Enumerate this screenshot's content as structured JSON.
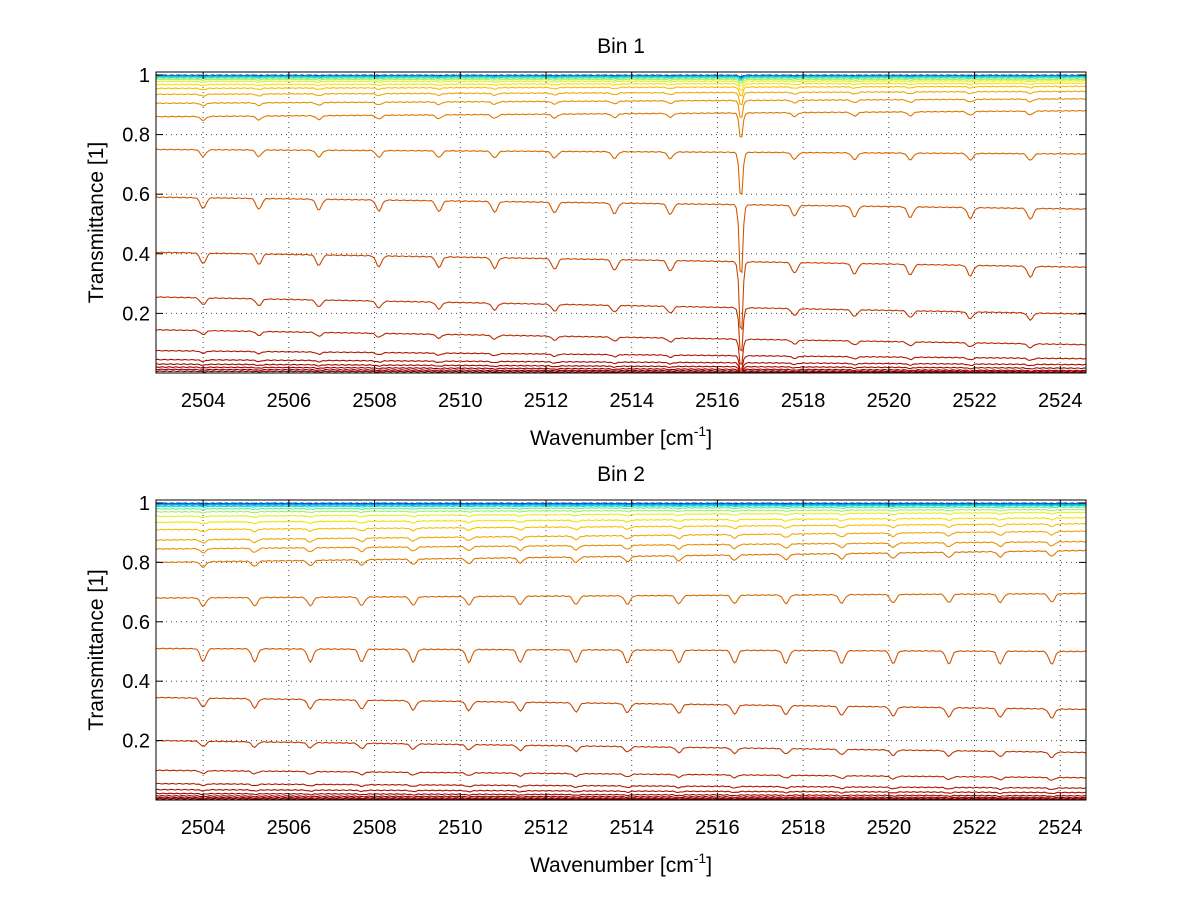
{
  "chart_data": [
    {
      "type": "line",
      "title": "Bin 1",
      "xlabel": "Wavenumber [cm",
      "xlabel_sup": "-1",
      "xlabel_tail": "]",
      "ylabel": "Transmittance [1]",
      "xlim": [
        2502.9,
        2524.6
      ],
      "ylim": [
        0,
        1.01
      ],
      "x_ticks": [
        2504,
        2506,
        2508,
        2510,
        2512,
        2514,
        2516,
        2518,
        2520,
        2522,
        2524
      ],
      "x_tick_labels": [
        "2504",
        "2506",
        "2508",
        "2510",
        "2512",
        "2514",
        "2516",
        "2518",
        "2520",
        "2522",
        "2524"
      ],
      "y_ticks": [
        0.2,
        0.4,
        0.6,
        0.8,
        1
      ],
      "y_tick_labels": [
        "0.2",
        "0.4",
        "0.6",
        "0.8",
        "1"
      ],
      "grid": true,
      "absorption_lines": [
        2504.0,
        2505.3,
        2506.7,
        2508.1,
        2509.5,
        2510.8,
        2512.2,
        2513.6,
        2514.9,
        2516.55,
        2517.8,
        2519.2,
        2520.5,
        2521.9,
        2523.3
      ],
      "strong_line": 2516.55,
      "series": [
        {
          "start": 0.999,
          "end": 0.999,
          "color": "#00208f"
        },
        {
          "start": 0.998,
          "end": 0.998,
          "color": "#0050d0"
        },
        {
          "start": 0.997,
          "end": 0.997,
          "color": "#0088f0"
        },
        {
          "start": 0.995,
          "end": 0.995,
          "color": "#00b8f0"
        },
        {
          "start": 0.993,
          "end": 0.993,
          "color": "#20d8d0"
        },
        {
          "start": 0.99,
          "end": 0.99,
          "color": "#60e8a0"
        },
        {
          "start": 0.985,
          "end": 0.985,
          "color": "#a0f060"
        },
        {
          "start": 0.978,
          "end": 0.98,
          "color": "#e0f020"
        },
        {
          "start": 0.968,
          "end": 0.972,
          "color": "#f8e000"
        },
        {
          "start": 0.955,
          "end": 0.962,
          "color": "#f8c000"
        },
        {
          "start": 0.935,
          "end": 0.945,
          "color": "#f0a800"
        },
        {
          "start": 0.905,
          "end": 0.92,
          "color": "#e89000"
        },
        {
          "start": 0.86,
          "end": 0.88,
          "color": "#e07800"
        },
        {
          "start": 0.75,
          "end": 0.735,
          "color": "#d86800"
        },
        {
          "start": 0.59,
          "end": 0.55,
          "color": "#d05800"
        },
        {
          "start": 0.405,
          "end": 0.355,
          "color": "#c84800"
        },
        {
          "start": 0.255,
          "end": 0.198,
          "color": "#c03800"
        },
        {
          "start": 0.145,
          "end": 0.095,
          "color": "#b82800"
        },
        {
          "start": 0.075,
          "end": 0.048,
          "color": "#b01800"
        },
        {
          "start": 0.045,
          "end": 0.028,
          "color": "#a81000"
        },
        {
          "start": 0.03,
          "end": 0.016,
          "color": "#a00800"
        },
        {
          "start": 0.02,
          "end": 0.008,
          "color": "#980000"
        },
        {
          "start": 0.012,
          "end": 0.004,
          "color": "#900000"
        },
        {
          "start": 0.006,
          "end": 0.001,
          "color": "#880000"
        }
      ]
    },
    {
      "type": "line",
      "title": "Bin 2",
      "xlabel": "Wavenumber [cm",
      "xlabel_sup": "-1",
      "xlabel_tail": "]",
      "ylabel": "Transmittance [1]",
      "xlim": [
        2502.9,
        2524.6
      ],
      "ylim": [
        0,
        1.01
      ],
      "x_ticks": [
        2504,
        2506,
        2508,
        2510,
        2512,
        2514,
        2516,
        2518,
        2520,
        2522,
        2524
      ],
      "x_tick_labels": [
        "2504",
        "2506",
        "2508",
        "2510",
        "2512",
        "2514",
        "2516",
        "2518",
        "2520",
        "2522",
        "2524"
      ],
      "y_ticks": [
        0.2,
        0.4,
        0.6,
        0.8,
        1
      ],
      "y_tick_labels": [
        "0.2",
        "0.4",
        "0.6",
        "0.8",
        "1"
      ],
      "grid": true,
      "absorption_lines": [
        2504.0,
        2505.2,
        2506.5,
        2507.7,
        2508.9,
        2510.2,
        2511.4,
        2512.7,
        2513.9,
        2515.1,
        2516.4,
        2517.6,
        2518.9,
        2520.1,
        2521.4,
        2522.6,
        2523.8
      ],
      "strong_line": null,
      "series": [
        {
          "start": 0.999,
          "end": 0.999,
          "color": "#00208f"
        },
        {
          "start": 0.998,
          "end": 0.998,
          "color": "#0050d0"
        },
        {
          "start": 0.996,
          "end": 0.996,
          "color": "#0088f0"
        },
        {
          "start": 0.993,
          "end": 0.994,
          "color": "#00b8f0"
        },
        {
          "start": 0.988,
          "end": 0.991,
          "color": "#20d8d0"
        },
        {
          "start": 0.98,
          "end": 0.986,
          "color": "#60e8a0"
        },
        {
          "start": 0.97,
          "end": 0.978,
          "color": "#a0f060"
        },
        {
          "start": 0.955,
          "end": 0.968,
          "color": "#e0f020"
        },
        {
          "start": 0.935,
          "end": 0.95,
          "color": "#f8e000"
        },
        {
          "start": 0.91,
          "end": 0.93,
          "color": "#f8c000"
        },
        {
          "start": 0.875,
          "end": 0.905,
          "color": "#f0a800"
        },
        {
          "start": 0.845,
          "end": 0.87,
          "color": "#e89000"
        },
        {
          "start": 0.8,
          "end": 0.84,
          "color": "#e07800"
        },
        {
          "start": 0.68,
          "end": 0.695,
          "color": "#d86800"
        },
        {
          "start": 0.51,
          "end": 0.5,
          "color": "#d05800"
        },
        {
          "start": 0.345,
          "end": 0.305,
          "color": "#c84800"
        },
        {
          "start": 0.2,
          "end": 0.16,
          "color": "#c03800"
        },
        {
          "start": 0.1,
          "end": 0.075,
          "color": "#b82800"
        },
        {
          "start": 0.055,
          "end": 0.04,
          "color": "#b01800"
        },
        {
          "start": 0.035,
          "end": 0.025,
          "color": "#a81000"
        },
        {
          "start": 0.022,
          "end": 0.014,
          "color": "#a00800"
        },
        {
          "start": 0.014,
          "end": 0.008,
          "color": "#980000"
        },
        {
          "start": 0.008,
          "end": 0.004,
          "color": "#900000"
        },
        {
          "start": 0.004,
          "end": 0.001,
          "color": "#880000"
        }
      ]
    }
  ]
}
